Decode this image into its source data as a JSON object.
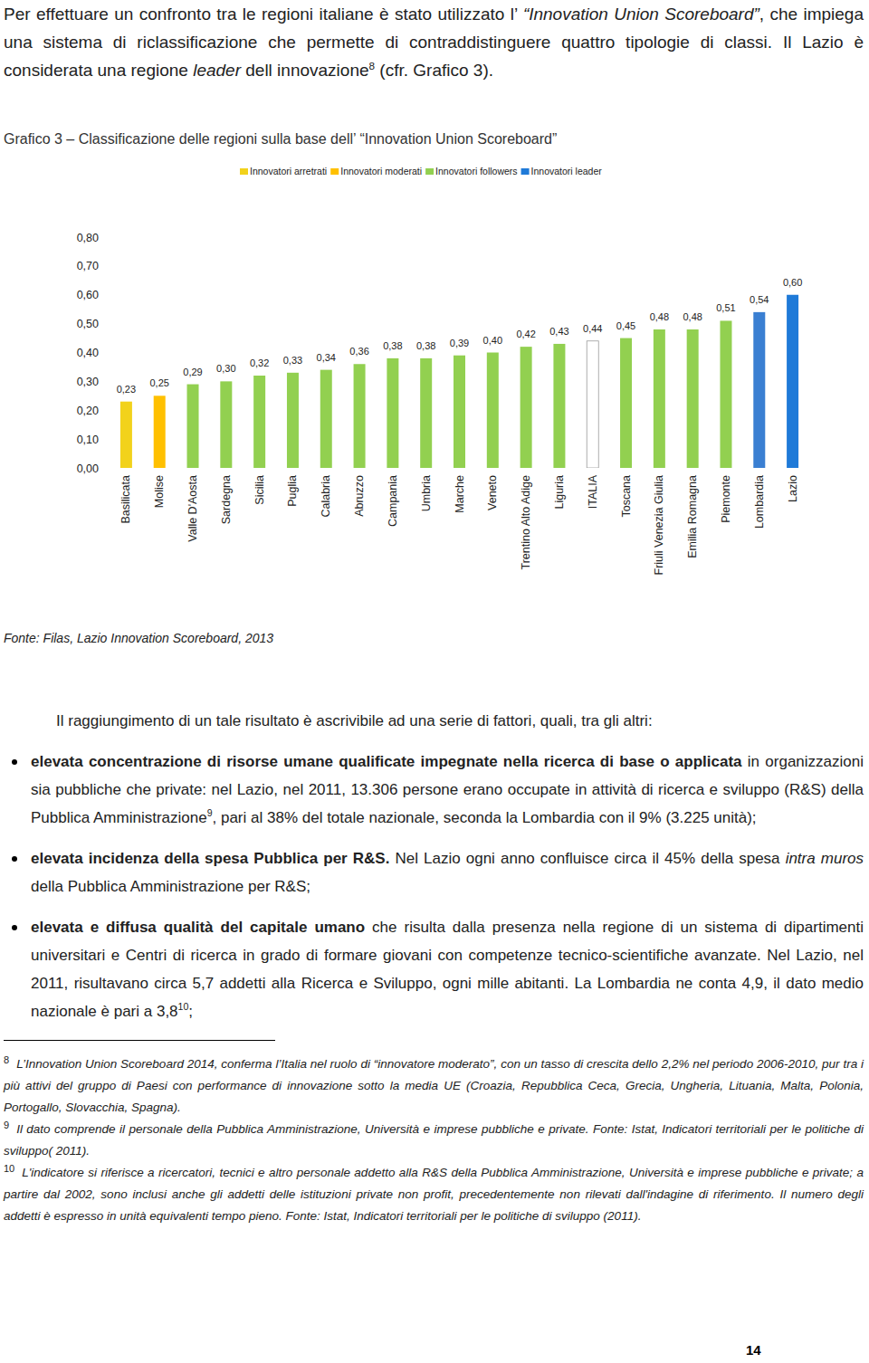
{
  "intro": {
    "runs": [
      {
        "text": "Per effettuare un confronto tra le regioni italiane è stato utilizzato l’ "
      },
      {
        "text": "“Innovation Union Scoreboard”",
        "format": "i"
      },
      {
        "text": ", che impiega una sistema di riclassificazione che permette di contraddistinguere quattro tipologie di classi. Il Lazio è considerata una regione "
      },
      {
        "text": "leader",
        "format": "i"
      },
      {
        "text": " dell innovazione"
      },
      {
        "text": "8",
        "format": "sup"
      },
      {
        "text": " (cfr. Grafico 3)."
      }
    ]
  },
  "chart_data": {
    "type": "bar",
    "title": "Grafico 3 – Classificazione delle regioni sulla base dell’ “Innovation Union Scoreboard”",
    "legend": "top",
    "legend_items": [
      {
        "name": "Innovatori arretrati",
        "color": "#f2d21b"
      },
      {
        "name": "Innovatori moderati",
        "color": "#ffc000"
      },
      {
        "name": "Innovatori followers",
        "color": "#92d050"
      },
      {
        "name": "Innovatori leader",
        "color": "#1f7ad8"
      }
    ],
    "categories": [
      "Basilicata",
      "Molise",
      "Valle D'Aosta",
      "Sardegna",
      "Sicilia",
      "Puglia",
      "Calabria",
      "Abruzzo",
      "Campania",
      "Umbria",
      "Marche",
      "Veneto",
      "Trentino Alto Adige",
      "Liguria",
      "ITALIA",
      "Toscana",
      "Friuli Venezia Giulia",
      "Emilia Romagna",
      "Piemonte",
      "Lombardia",
      "Lazio"
    ],
    "values": [
      0.23,
      0.25,
      0.29,
      0.3,
      0.32,
      0.33,
      0.34,
      0.36,
      0.38,
      0.38,
      0.39,
      0.4,
      0.42,
      0.43,
      0.44,
      0.45,
      0.48,
      0.48,
      0.51,
      0.54,
      0.6
    ],
    "value_labels": [
      "0,23",
      "0,25",
      "0,29",
      "0,30",
      "0,32",
      "0,33",
      "0,34",
      "0,36",
      "0,38",
      "0,38",
      "0,39",
      "0,40",
      "0,42",
      "0,43",
      "0,44",
      "0,45",
      "0,48",
      "0,48",
      "0,51",
      "0,54",
      "0,60"
    ],
    "colors": [
      "#f2d21b",
      "#ffc000",
      "#92d050",
      "#92d050",
      "#92d050",
      "#92d050",
      "#92d050",
      "#92d050",
      "#92d050",
      "#92d050",
      "#92d050",
      "#92d050",
      "#92d050",
      "#92d050",
      "#ffffff",
      "#92d050",
      "#92d050",
      "#92d050",
      "#92d050",
      "#3a7fd2",
      "#1f7ad8"
    ],
    "data_labels": true,
    "grid": false,
    "ylim": [
      0,
      0.8
    ],
    "yticks": [
      {
        "value": 0,
        "label": "0,00"
      },
      {
        "value": 0.1,
        "label": "0,10"
      },
      {
        "value": 0.2,
        "label": "0,20"
      },
      {
        "value": 0.3,
        "label": "0,30"
      },
      {
        "value": 0.4,
        "label": "0,40"
      },
      {
        "value": 0.5,
        "label": "0,50"
      },
      {
        "value": 0.6,
        "label": "0,60"
      },
      {
        "value": 0.7,
        "label": "0,70"
      },
      {
        "value": 0.8,
        "label": "0,80"
      }
    ],
    "source": "Fonte: Filas, Lazio Innovation Scoreboard, 2013"
  },
  "body": {
    "intro": "Il raggiungimento di un tale risultato è ascrivibile ad una serie di fattori, quali, tra gli altri:",
    "bullets": [
      {
        "runs": [
          {
            "text": "elevata concentrazione di risorse umane qualificate impegnate nella ricerca di base o applicata",
            "format": "b"
          },
          {
            "text": " in organizzazioni sia pubbliche che private: nel Lazio, nel 2011, 13.306 persone erano occupate in attività di ricerca e sviluppo (R&S) della Pubblica Amministrazione"
          },
          {
            "text": "9",
            "format": "sup"
          },
          {
            "text": ", pari al 38% del totale nazionale, seconda la Lombardia con il 9% (3.225 unità);"
          }
        ]
      },
      {
        "runs": [
          {
            "text": "elevata incidenza della spesa Pubblica per R&S.",
            "format": "b"
          },
          {
            "text": " Nel Lazio ogni anno confluisce circa il 45% della spesa "
          },
          {
            "text": "intra muros",
            "format": "i"
          },
          {
            "text": " della Pubblica Amministrazione per R&S;"
          }
        ]
      },
      {
        "runs": [
          {
            "text": "elevata e diffusa qualità del capitale umano",
            "format": "b"
          },
          {
            "text": " che risulta dalla presenza nella regione di un sistema di dipartimenti universitari e Centri di ricerca in grado di formare giovani con competenze tecnico-scientifiche avanzate. Nel Lazio, nel 2011, risultavano circa 5,7 addetti alla Ricerca e Sviluppo, ogni mille abitanti. La Lombardia ne conta 4,9, il dato medio nazionale è pari a 3,8"
          },
          {
            "text": "10",
            "format": "sup"
          },
          {
            "text": ";"
          }
        ]
      }
    ]
  },
  "footnotes": [
    {
      "number": "8",
      "text": "L’Innovation Union Scoreboard 2014, conferma l’Italia nel ruolo di “innovatore moderato”, con un tasso di crescita dello 2,2% nel periodo 2006-2010, pur tra i più attivi del gruppo di Paesi con performance di innovazione sotto la media UE (Croazia, Repubblica Ceca, Grecia, Ungheria, Lituania, Malta, Polonia, Portogallo, Slovacchia, Spagna)."
    },
    {
      "number": "9",
      "text": "Il dato comprende il personale della Pubblica Amministrazione, Università e imprese pubbliche e private. Fonte: Istat, Indicatori territoriali per le politiche di sviluppo( 2011)."
    },
    {
      "number": "10",
      "text": "L'indicatore si riferisce a ricercatori, tecnici e altro personale addetto alla R&S della Pubblica Amministrazione, Università e imprese pubbliche e private; a partire dal 2002, sono inclusi anche gli addetti delle istituzioni private non profit, precedentemente non rilevati dall'indagine di riferimento. Il numero degli addetti è espresso in unità equivalenti tempo pieno. Fonte: Istat, Indicatori territoriali per le politiche di sviluppo (2011)."
    }
  ],
  "page_number": "14"
}
